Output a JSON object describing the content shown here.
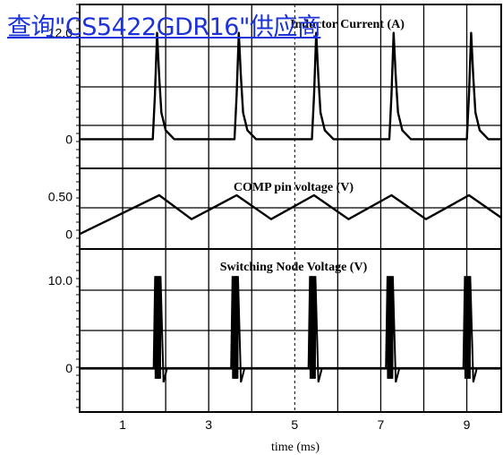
{
  "overlay": {
    "link_text": "查询\"CS5422GDR16\"供应商",
    "color": "#1a32d8"
  },
  "chart_data": [
    {
      "type": "line",
      "title": "Inductor Current (A)",
      "y_ticks": [
        {
          "value": 12.0,
          "label": "12.0"
        },
        {
          "value": 0,
          "label": "0"
        }
      ],
      "ylim": [
        -3.3,
        15.2
      ],
      "x": [
        0.0,
        1.7,
        1.75,
        1.8,
        1.85,
        1.9,
        2.0,
        2.2,
        3.6,
        3.65,
        3.7,
        3.75,
        3.8,
        3.9,
        4.1,
        5.4,
        5.45,
        5.5,
        5.55,
        5.6,
        5.7,
        5.9,
        7.2,
        7.25,
        7.3,
        7.35,
        7.4,
        7.5,
        7.7,
        9.0,
        9.05,
        9.1,
        9.15,
        9.2,
        9.3,
        9.5,
        9.8
      ],
      "y": [
        0,
        0,
        5,
        12.0,
        7,
        3,
        1,
        0,
        0,
        5,
        12.0,
        7,
        3,
        1,
        0,
        0,
        5,
        12.0,
        7,
        3,
        1,
        0,
        0,
        5,
        12.0,
        7,
        3,
        1,
        0,
        0,
        5,
        12.0,
        7,
        3,
        1,
        0,
        0
      ]
    },
    {
      "type": "line",
      "title": "COMP pin voltage (V)",
      "y_ticks": [
        {
          "value": 0.5,
          "label": "0.50"
        },
        {
          "value": 0,
          "label": "0"
        }
      ],
      "ylim": [
        -0.2,
        0.88
      ],
      "x": [
        0.0,
        1.85,
        2.6,
        3.65,
        4.45,
        5.45,
        6.25,
        7.25,
        8.05,
        9.05,
        9.8
      ],
      "y": [
        0.0,
        0.52,
        0.2,
        0.52,
        0.2,
        0.52,
        0.2,
        0.52,
        0.2,
        0.52,
        0.22
      ]
    },
    {
      "type": "line",
      "title": "Switching Node Voltage (V)",
      "y_ticks": [
        {
          "value": 10.0,
          "label": "10.0"
        },
        {
          "value": 0,
          "label": "0"
        }
      ],
      "ylim": [
        -5.0,
        13.6
      ],
      "switching_bursts": [
        {
          "start": 1.72,
          "end": 1.95,
          "high": 10.5,
          "low": -1.2
        },
        {
          "start": 3.52,
          "end": 3.75,
          "high": 10.5,
          "low": -1.2
        },
        {
          "start": 5.32,
          "end": 5.55,
          "high": 10.5,
          "low": -1.2
        },
        {
          "start": 7.12,
          "end": 7.35,
          "high": 10.5,
          "low": -1.2
        },
        {
          "start": 8.92,
          "end": 9.15,
          "high": 10.5,
          "low": -1.2
        }
      ],
      "baseline": 0
    }
  ],
  "x_axis": {
    "label": "time (ms)",
    "tick_labels": [
      {
        "value": 1,
        "label": "1"
      },
      {
        "value": 3,
        "label": "3"
      },
      {
        "value": 5,
        "label": "5"
      },
      {
        "value": 7,
        "label": "7"
      },
      {
        "value": 9,
        "label": "9"
      }
    ],
    "range": [
      0,
      9.8
    ]
  },
  "colors": {
    "trace": "#000000",
    "grid": "#000000",
    "background": "#ffffff"
  }
}
